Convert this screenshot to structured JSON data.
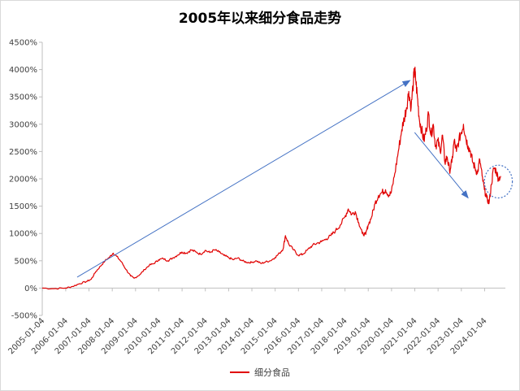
{
  "chart_data": {
    "type": "line",
    "title": "2005年以来细分食品走势",
    "xlabel": "",
    "ylabel": "",
    "ylim": [
      -500,
      4500
    ],
    "yticks": [
      "-500%",
      "0%",
      "500%",
      "1000%",
      "1500%",
      "2000%",
      "2500%",
      "3000%",
      "3500%",
      "4000%",
      "4500%"
    ],
    "ytick_values": [
      -500,
      0,
      500,
      1000,
      1500,
      2000,
      2500,
      3000,
      3500,
      4000,
      4500
    ],
    "xticks": [
      "2005-01-04",
      "2006-01-04",
      "2007-01-04",
      "2008-01-04",
      "2009-01-04",
      "2010-01-04",
      "2011-01-04",
      "2012-01-04",
      "2013-01-04",
      "2014-01-04",
      "2015-01-04",
      "2016-01-04",
      "2017-01-04",
      "2018-01-04",
      "2019-01-04",
      "2020-01-04",
      "2021-01-04",
      "2022-01-04",
      "2023-01-04",
      "2024-01-04"
    ],
    "grid": false,
    "legend": "bottom",
    "series": [
      {
        "name": "细分食品",
        "color": "#e00000",
        "x": [
          2005.0,
          2005.5,
          2006.0,
          2006.3,
          2006.6,
          2006.9,
          2007.1,
          2007.3,
          2007.5,
          2007.7,
          2007.9,
          2008.05,
          2008.2,
          2008.4,
          2008.6,
          2008.8,
          2008.95,
          2009.2,
          2009.4,
          2009.6,
          2009.8,
          2010.0,
          2010.2,
          2010.4,
          2010.6,
          2010.8,
          2011.0,
          2011.2,
          2011.4,
          2011.6,
          2011.8,
          2012.0,
          2012.2,
          2012.4,
          2012.6,
          2012.8,
          2013.0,
          2013.2,
          2013.4,
          2013.6,
          2013.8,
          2014.0,
          2014.2,
          2014.4,
          2014.6,
          2014.8,
          2015.0,
          2015.2,
          2015.35,
          2015.45,
          2015.6,
          2015.8,
          2016.0,
          2016.2,
          2016.4,
          2016.6,
          2016.8,
          2017.0,
          2017.2,
          2017.4,
          2017.6,
          2017.8,
          2018.0,
          2018.15,
          2018.3,
          2018.45,
          2018.6,
          2018.75,
          2018.9,
          2019.0,
          2019.15,
          2019.3,
          2019.45,
          2019.6,
          2019.75,
          2019.9,
          2020.0,
          2020.15,
          2020.3,
          2020.45,
          2020.55,
          2020.65,
          2020.75,
          2020.85,
          2020.95,
          2021.0,
          2021.05,
          2021.12,
          2021.2,
          2021.3,
          2021.4,
          2021.5,
          2021.6,
          2021.7,
          2021.8,
          2021.9,
          2022.0,
          2022.1,
          2022.2,
          2022.3,
          2022.4,
          2022.5,
          2022.6,
          2022.7,
          2022.8,
          2022.9,
          2023.0,
          2023.1,
          2023.2,
          2023.3,
          2023.4,
          2023.5,
          2023.6,
          2023.7,
          2023.8,
          2023.9,
          2024.0,
          2024.1,
          2024.2,
          2024.3,
          2024.4,
          2024.5,
          2024.6,
          2024.7
        ],
        "values": [
          0,
          -10,
          0,
          30,
          80,
          120,
          160,
          300,
          400,
          500,
          570,
          640,
          580,
          480,
          340,
          220,
          180,
          250,
          340,
          420,
          450,
          520,
          540,
          500,
          550,
          600,
          660,
          640,
          700,
          660,
          620,
          690,
          650,
          700,
          660,
          600,
          560,
          520,
          550,
          500,
          470,
          470,
          500,
          450,
          480,
          500,
          560,
          640,
          720,
          960,
          800,
          700,
          600,
          620,
          700,
          780,
          820,
          850,
          900,
          960,
          1050,
          1150,
          1300,
          1450,
          1350,
          1400,
          1200,
          1000,
          980,
          1150,
          1300,
          1550,
          1700,
          1750,
          1800,
          1700,
          1750,
          2100,
          2500,
          2900,
          3100,
          3300,
          3600,
          3300,
          3800,
          4000,
          3800,
          3500,
          3100,
          2900,
          2700,
          2900,
          3200,
          2800,
          3000,
          2600,
          2700,
          2500,
          2800,
          2300,
          2400,
          2150,
          2300,
          2700,
          2500,
          2700,
          2850,
          3000,
          2750,
          2600,
          2500,
          2300,
          2200,
          2100,
          2350,
          2050,
          1800,
          1650,
          1550,
          1900,
          2200,
          2150,
          2000,
          2050
        ]
      }
    ],
    "annotations": [
      {
        "type": "arrow",
        "from": [
          2006.5,
          200
        ],
        "to": [
          2020.8,
          3800
        ],
        "color": "#4472c4"
      },
      {
        "type": "arrow",
        "from": [
          2021.0,
          2850
        ],
        "to": [
          2023.3,
          1650
        ],
        "color": "#4472c4"
      },
      {
        "type": "circle",
        "center": [
          2024.6,
          1950
        ],
        "rx_years": 0.6,
        "ry_value": 300,
        "color": "#4472c4",
        "dashed": true
      }
    ]
  }
}
